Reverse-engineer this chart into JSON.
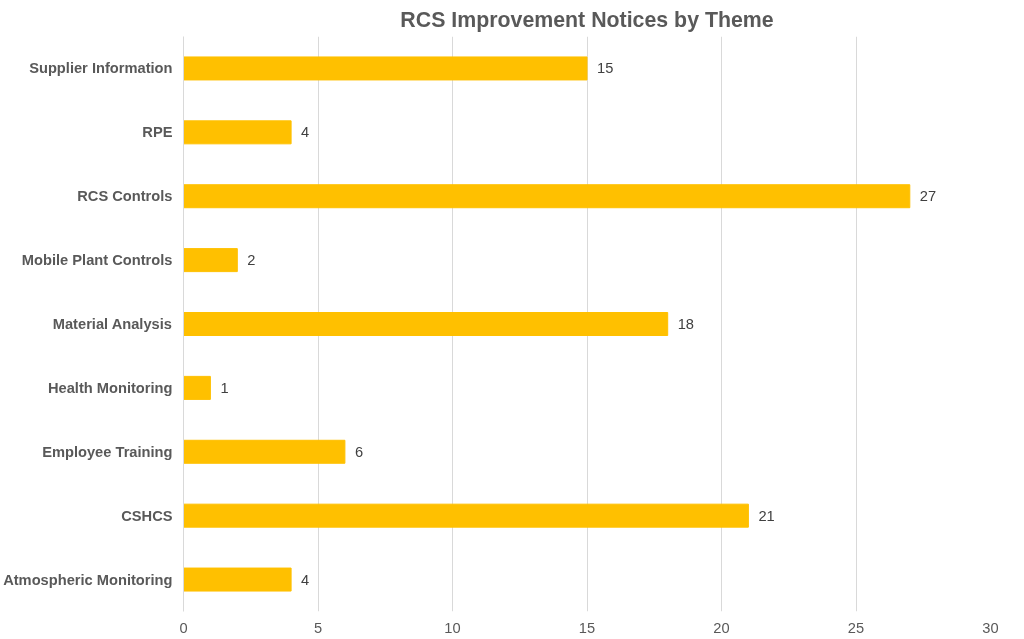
{
  "chart_data": {
    "type": "bar",
    "orientation": "horizontal",
    "title": "RCS Improvement Notices by Theme",
    "categories": [
      "Supplier Information",
      "RPE",
      "RCS Controls",
      "Mobile Plant Controls",
      "Material Analysis",
      "Health Monitoring",
      "Employee Training",
      "CSHCS",
      "Atmospheric Monitoring"
    ],
    "values": [
      15,
      4,
      27,
      2,
      18,
      1,
      6,
      21,
      4
    ],
    "color": "#ffc000",
    "xlim": [
      0,
      30
    ],
    "xticks": [
      0,
      5,
      10,
      15,
      20,
      25,
      30
    ],
    "grid": "x",
    "data_labels": true
  }
}
